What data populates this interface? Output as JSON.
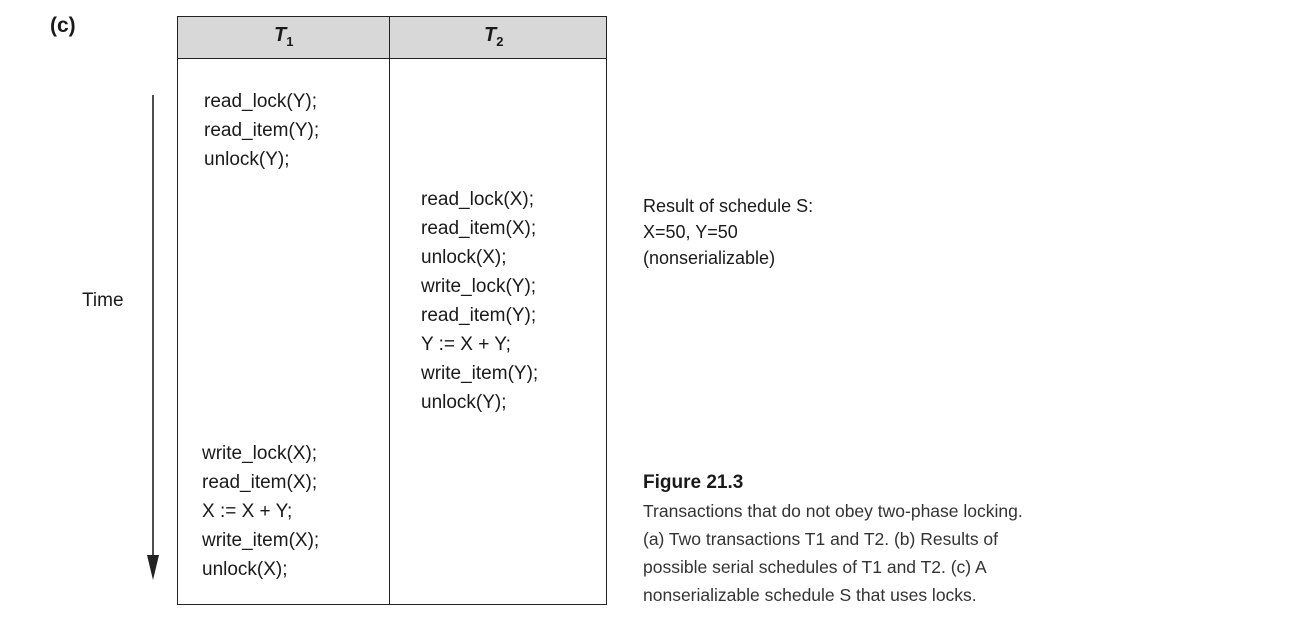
{
  "panel_label": "(c)",
  "time_label": "Time",
  "table": {
    "headers": {
      "t1": "T",
      "t1_sub": "1",
      "t2": "T",
      "t2_sub": "2"
    },
    "t1_block_1": [
      "read_lock(Y);",
      "read_item(Y);",
      "unlock(Y);"
    ],
    "t2_block": [
      "read_lock(X);",
      "read_item(X);",
      "unlock(X);",
      "write_lock(Y);",
      "read_item(Y);",
      "Y := X + Y;",
      "write_item(Y);",
      "unlock(Y);"
    ],
    "t1_block_2": [
      "write_lock(X);",
      "read_item(X);",
      "X := X + Y;",
      "write_item(X);",
      "unlock(X);"
    ]
  },
  "result": {
    "line1": "Result of schedule S:",
    "line2": "X=50, Y=50",
    "line3": "(nonserializable)"
  },
  "figure": {
    "title": "Figure 21.3",
    "caption_lines": [
      "Transactions that do not obey two-phase locking.",
      "(a) Two transactions T1 and T2. (b) Results of",
      "possible serial schedules of T1 and T2. (c) A",
      "nonserializable schedule S that uses locks."
    ]
  }
}
